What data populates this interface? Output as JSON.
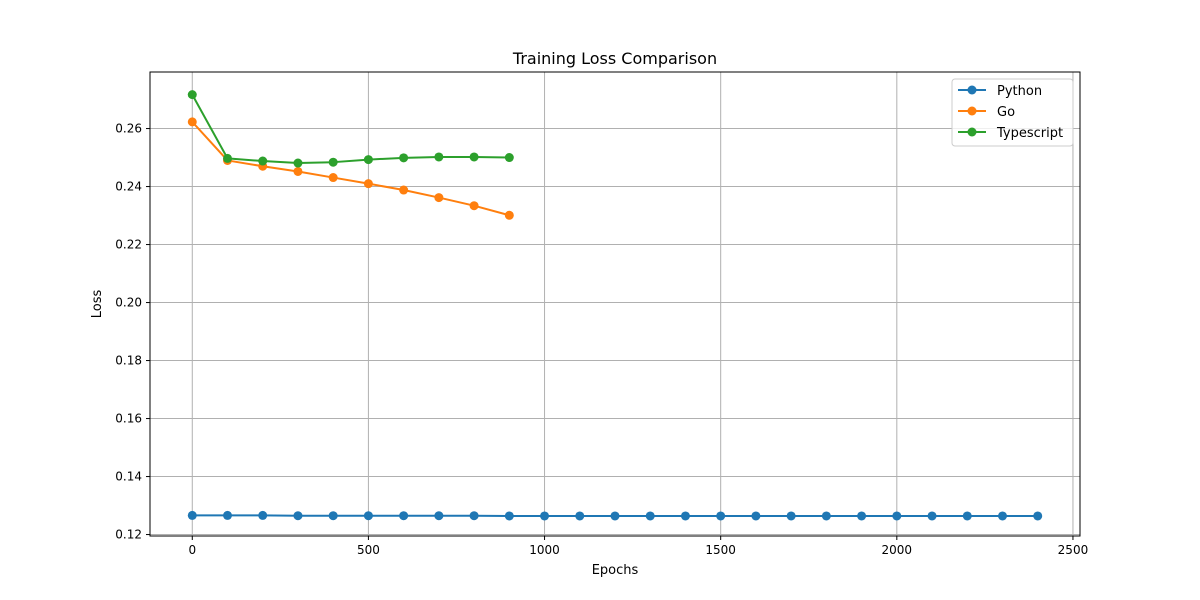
{
  "chart_data": {
    "type": "line",
    "title": "Training Loss Comparison",
    "xlabel": "Epochs",
    "ylabel": "Loss",
    "xlim": [
      -120,
      2520
    ],
    "ylim": [
      0.1195,
      0.2795
    ],
    "xticks": [
      0,
      500,
      1000,
      1500,
      2000,
      2500
    ],
    "xtick_labels": [
      "0",
      "500",
      "1000",
      "1500",
      "2000",
      "2500"
    ],
    "yticks": [
      0.12,
      0.14,
      0.16,
      0.18,
      0.2,
      0.22,
      0.24,
      0.26
    ],
    "ytick_labels": [
      "0.12",
      "0.14",
      "0.16",
      "0.18",
      "0.20",
      "0.22",
      "0.24",
      "0.26"
    ],
    "grid": true,
    "legend_position": "top-right",
    "marker": "circle",
    "series": [
      {
        "name": "Python",
        "color": "#1f77b4",
        "x": [
          0,
          100,
          200,
          300,
          400,
          500,
          600,
          700,
          800,
          900,
          1000,
          1100,
          1200,
          1300,
          1400,
          1500,
          1600,
          1700,
          1800,
          1900,
          2000,
          2100,
          2200,
          2300,
          2400
        ],
        "y": [
          0.1266,
          0.1266,
          0.1266,
          0.1265,
          0.1265,
          0.1265,
          0.1265,
          0.1265,
          0.1265,
          0.1264,
          0.1264,
          0.1264,
          0.1264,
          0.1264,
          0.1264,
          0.1264,
          0.1264,
          0.1264,
          0.1264,
          0.1264,
          0.1264,
          0.1264,
          0.1264,
          0.1264,
          0.1264
        ]
      },
      {
        "name": "Go",
        "color": "#ff7f0e",
        "x": [
          0,
          100,
          200,
          300,
          400,
          500,
          600,
          700,
          800,
          900
        ],
        "y": [
          0.2623,
          0.249,
          0.247,
          0.2452,
          0.2431,
          0.241,
          0.2388,
          0.2362,
          0.2334,
          0.2301
        ]
      },
      {
        "name": "Typescript",
        "color": "#2ca02c",
        "x": [
          0,
          100,
          200,
          300,
          400,
          500,
          600,
          700,
          800,
          900
        ],
        "y": [
          0.2717,
          0.2497,
          0.2488,
          0.2481,
          0.2484,
          0.2493,
          0.2499,
          0.2502,
          0.2502,
          0.25
        ]
      }
    ]
  }
}
